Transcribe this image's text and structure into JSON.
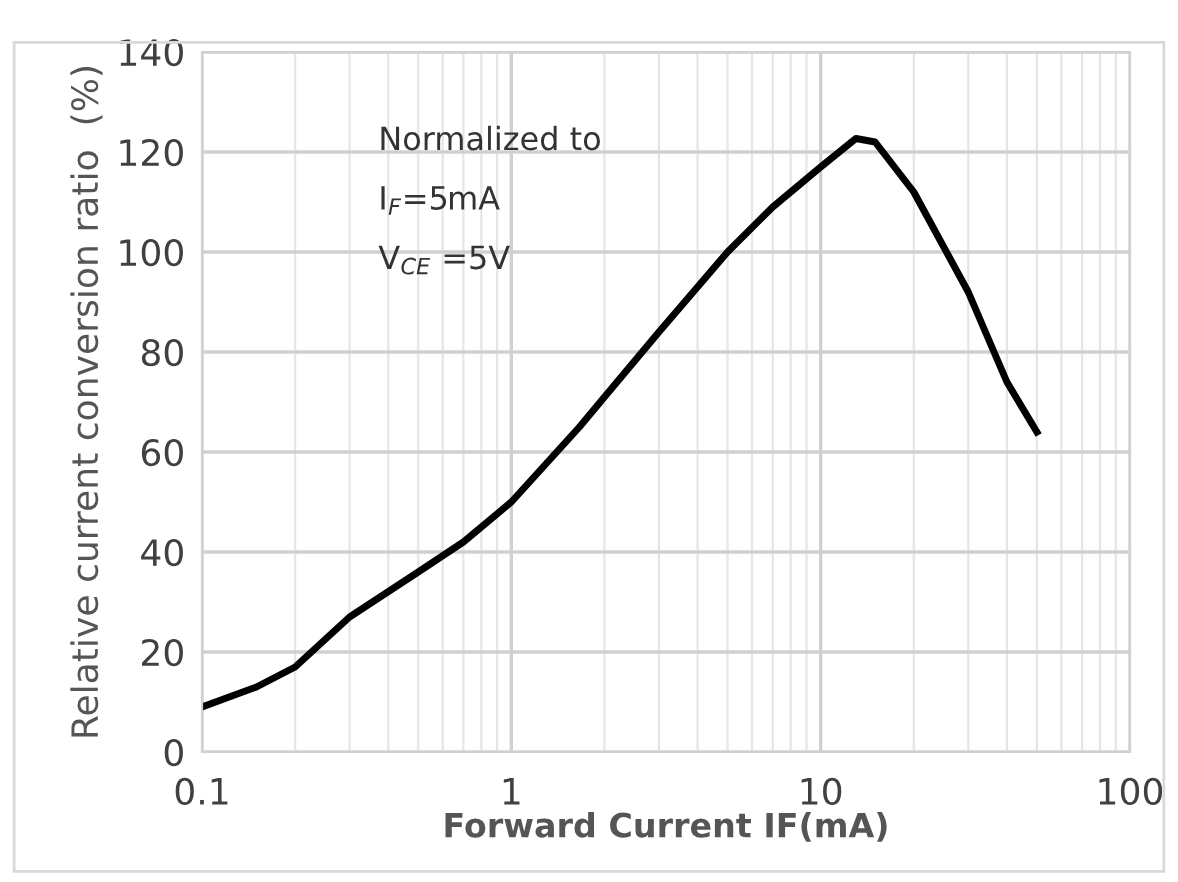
{
  "chart_data": {
    "type": "line",
    "xlabel": "Forward Current IF(mA)",
    "ylabel": "Relative current conversion ratio  (%)",
    "annotations": [
      "Normalized to",
      "I$_{F}$=5mA",
      "V$_{CE}$ =5V"
    ],
    "log": "x",
    "grid": true,
    "line_style": "solid",
    "marker": "none",
    "xlim": [
      0.1,
      100
    ],
    "xticks": [
      0.1,
      1,
      10,
      100
    ],
    "ylim": [
      0,
      140
    ],
    "yticks": [
      0,
      20,
      40,
      60,
      80,
      100,
      120,
      140
    ],
    "series": [
      {
        "color": "#000000",
        "x": [
          0.1,
          0.15,
          0.2,
          0.3,
          0.5,
          0.7,
          1,
          1.66,
          2,
          3,
          5,
          7,
          10,
          13,
          15,
          20,
          30,
          40,
          50
        ],
        "values": [
          9,
          13,
          17,
          27,
          36,
          42,
          50,
          65,
          71,
          84,
          100,
          109,
          117,
          122.7,
          122,
          112,
          92,
          74,
          64
        ]
      }
    ]
  }
}
